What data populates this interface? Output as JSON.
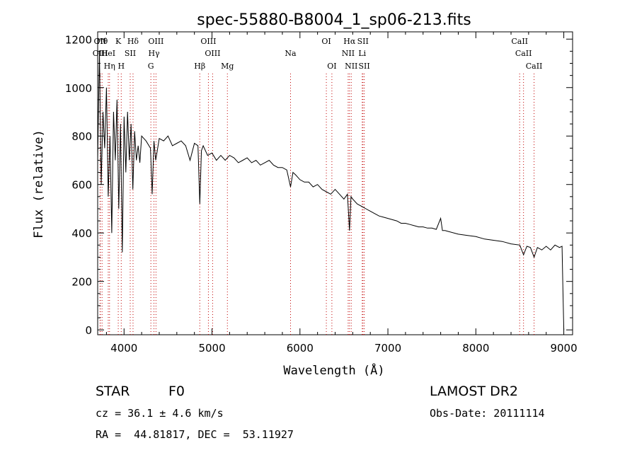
{
  "chart_data": {
    "type": "line",
    "title": "spec-55880-B8004_1_sp06-213.fits",
    "xlabel": "Wavelength (Å)",
    "ylabel": "Flux (relative)",
    "xlim": [
      3700,
      9100
    ],
    "ylim": [
      -20,
      1230
    ],
    "xticks": [
      4000,
      5000,
      6000,
      7000,
      8000,
      9000
    ],
    "yticks": [
      0,
      200,
      400,
      600,
      800,
      1000,
      1200
    ],
    "grid": false,
    "series": [
      {
        "name": "spectrum",
        "x": [
          3700,
          3720,
          3740,
          3760,
          3780,
          3800,
          3820,
          3840,
          3860,
          3880,
          3900,
          3920,
          3940,
          3960,
          3980,
          4000,
          4020,
          4040,
          4060,
          4080,
          4100,
          4120,
          4140,
          4160,
          4180,
          4200,
          4250,
          4300,
          4320,
          4340,
          4360,
          4400,
          4450,
          4500,
          4550,
          4600,
          4650,
          4700,
          4750,
          4800,
          4840,
          4861,
          4880,
          4900,
          4950,
          5000,
          5050,
          5100,
          5150,
          5200,
          5250,
          5300,
          5350,
          5400,
          5450,
          5500,
          5550,
          5600,
          5650,
          5700,
          5750,
          5800,
          5850,
          5893,
          5920,
          5950,
          6000,
          6050,
          6100,
          6150,
          6200,
          6250,
          6300,
          6350,
          6400,
          6450,
          6500,
          6540,
          6563,
          6580,
          6600,
          6650,
          6700,
          6750,
          6800,
          6850,
          6900,
          6950,
          7000,
          7050,
          7100,
          7150,
          7200,
          7250,
          7300,
          7350,
          7400,
          7450,
          7500,
          7550,
          7600,
          7620,
          7650,
          7700,
          7800,
          7900,
          8000,
          8100,
          8200,
          8300,
          8400,
          8500,
          8542,
          8580,
          8620,
          8662,
          8700,
          8750,
          8800,
          8850,
          8900,
          8950,
          8980,
          8990,
          9000
        ],
        "y": [
          700,
          1150,
          600,
          900,
          750,
          1000,
          550,
          800,
          400,
          900,
          700,
          950,
          500,
          850,
          320,
          880,
          650,
          900,
          700,
          850,
          580,
          820,
          700,
          760,
          690,
          800,
          780,
          750,
          560,
          780,
          700,
          790,
          780,
          800,
          760,
          770,
          780,
          760,
          700,
          770,
          760,
          520,
          740,
          760,
          720,
          730,
          700,
          720,
          700,
          720,
          710,
          690,
          700,
          710,
          690,
          700,
          680,
          690,
          700,
          680,
          670,
          670,
          660,
          590,
          650,
          640,
          620,
          610,
          610,
          590,
          600,
          580,
          570,
          560,
          580,
          560,
          540,
          560,
          410,
          550,
          540,
          520,
          510,
          500,
          490,
          480,
          470,
          465,
          460,
          455,
          450,
          440,
          440,
          435,
          430,
          425,
          425,
          420,
          420,
          415,
          460,
          410,
          410,
          405,
          395,
          390,
          385,
          375,
          370,
          365,
          355,
          350,
          310,
          345,
          340,
          300,
          340,
          330,
          345,
          330,
          350,
          340,
          345,
          170,
          0
        ]
      }
    ],
    "annotations": [
      {
        "label": "HeI",
        "x": 3820
      },
      {
        "label": "OII",
        "x": 3727
      },
      {
        "label": "OIII",
        "x": 3730
      },
      {
        "label": "Hθ",
        "x": 3750
      },
      {
        "label": "Hη",
        "x": 3835
      },
      {
        "label": "K",
        "x": 3934
      },
      {
        "label": "H",
        "x": 3968
      },
      {
        "label": "SII",
        "x": 4070
      },
      {
        "label": "Hδ",
        "x": 4102
      },
      {
        "label": "OIII",
        "x": 4363
      },
      {
        "label": "Hγ",
        "x": 4340
      },
      {
        "label": "G",
        "x": 4305
      },
      {
        "label": "Hβ",
        "x": 4861
      },
      {
        "label": "OIII",
        "x": 4959
      },
      {
        "label": "OIII",
        "x": 5007
      },
      {
        "label": "Mg",
        "x": 5175
      },
      {
        "label": "Na",
        "x": 5893
      },
      {
        "label": "OI",
        "x": 6300
      },
      {
        "label": "OI",
        "x": 6363
      },
      {
        "label": "Hα",
        "x": 6563
      },
      {
        "label": "NII",
        "x": 6548
      },
      {
        "label": "NII",
        "x": 6583
      },
      {
        "label": "SII",
        "x": 6716
      },
      {
        "label": "Li",
        "x": 6708
      },
      {
        "label": "SII",
        "x": 6731
      },
      {
        "label": "CaII",
        "x": 8498
      },
      {
        "label": "CaII",
        "x": 8542
      },
      {
        "label": "CaII",
        "x": 8662
      }
    ]
  },
  "footer": {
    "object_class": "STAR",
    "subclass": "F0",
    "survey": "LAMOST DR2",
    "cz": "cz = 36.1 ± 4.6 km/s",
    "obs_date": "Obs-Date: 20111114",
    "coords": "RA =  44.81817, DEC =  53.11927"
  }
}
